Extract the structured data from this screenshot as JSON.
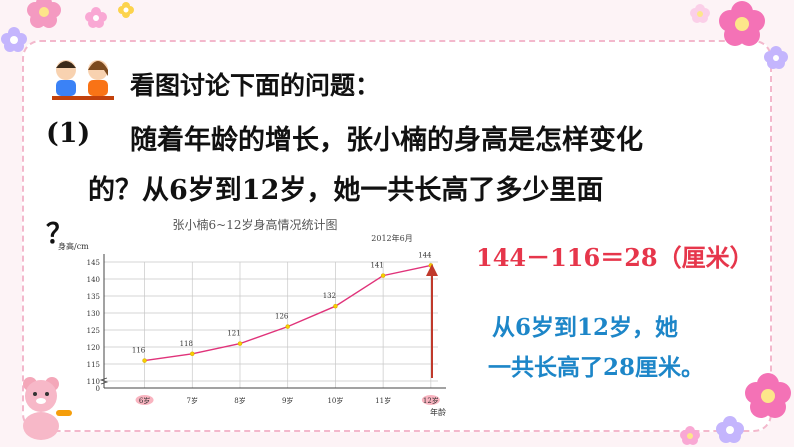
{
  "heading": "看图讨论下面的问题：",
  "question": {
    "number": "(1)",
    "line1": "随着年龄的增长，张小楠的身高是怎样变化",
    "line2": "的？从6岁到12岁，她一共长高了多少里面",
    "line3": "？"
  },
  "answer": {
    "equation": "144－116＝28（厘米）",
    "line1": "从6岁到12岁，她",
    "line2": "一共长高了28厘米。"
  },
  "colors": {
    "background": "#fdf3f6",
    "line": "#e0337a",
    "answer_red": "#e6364b",
    "answer_blue": "#1d86c8",
    "grid": "#c8c8c8"
  },
  "chart_data": {
    "type": "line",
    "title": "张小楠6~12岁身高情况统计图",
    "date_note": "2012年6月",
    "ylabel": "身高/cm",
    "xlabel": "年龄",
    "categories": [
      "6岁",
      "7岁",
      "8岁",
      "9岁",
      "10岁",
      "11岁",
      "12岁"
    ],
    "series": [
      {
        "values": [
          116,
          118,
          121,
          126,
          132,
          141,
          144
        ]
      }
    ],
    "yticks": [
      0,
      110,
      115,
      120,
      125,
      130,
      135,
      140,
      145
    ],
    "ylim": [
      110,
      145
    ],
    "axis_break": true,
    "grid": true,
    "highlighted_categories": [
      "6岁",
      "12岁"
    ]
  }
}
